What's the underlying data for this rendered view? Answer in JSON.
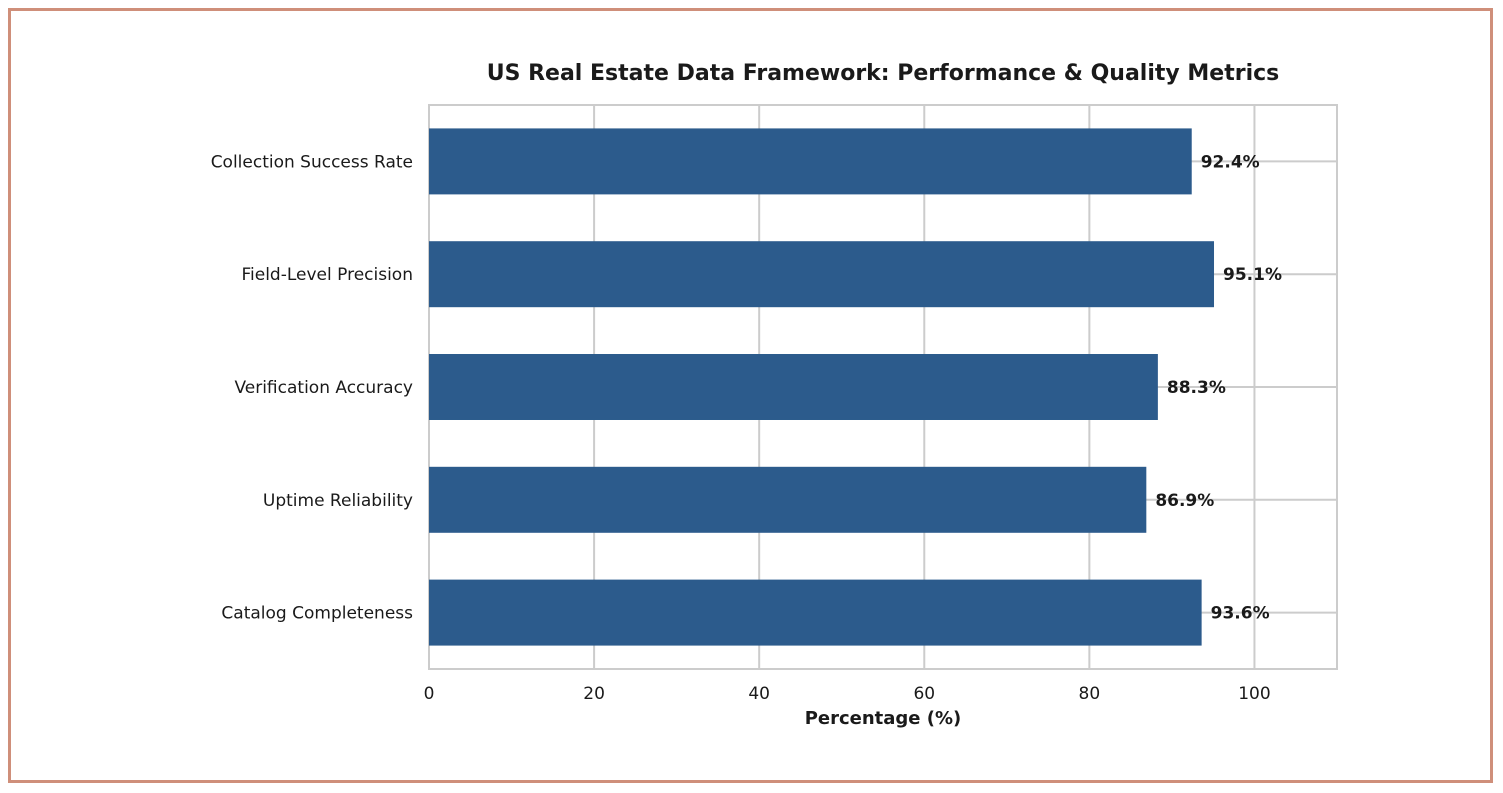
{
  "chart_data": {
    "type": "bar",
    "orientation": "horizontal",
    "title": "US Real Estate Data Framework: Performance & Quality Metrics",
    "xlabel": "Percentage (%)",
    "ylabel": "",
    "categories": [
      "Collection Success Rate",
      "Field-Level Precision",
      "Verification Accuracy",
      "Uptime Reliability",
      "Catalog Completeness"
    ],
    "values": [
      92.4,
      95.1,
      88.3,
      86.9,
      93.6
    ],
    "value_labels": [
      "92.4%",
      "95.1%",
      "88.3%",
      "86.9%",
      "93.6%"
    ],
    "xlim": [
      0,
      110
    ],
    "xticks": [
      0,
      20,
      40,
      60,
      80,
      100
    ],
    "xtick_labels": [
      "0",
      "20",
      "40",
      "60",
      "80",
      "100"
    ],
    "grid": true,
    "colors": {
      "bar": "#2c5b8c",
      "grid": "#cccccc",
      "border": "#cf8f7a",
      "text": "#1a1a1a"
    }
  }
}
